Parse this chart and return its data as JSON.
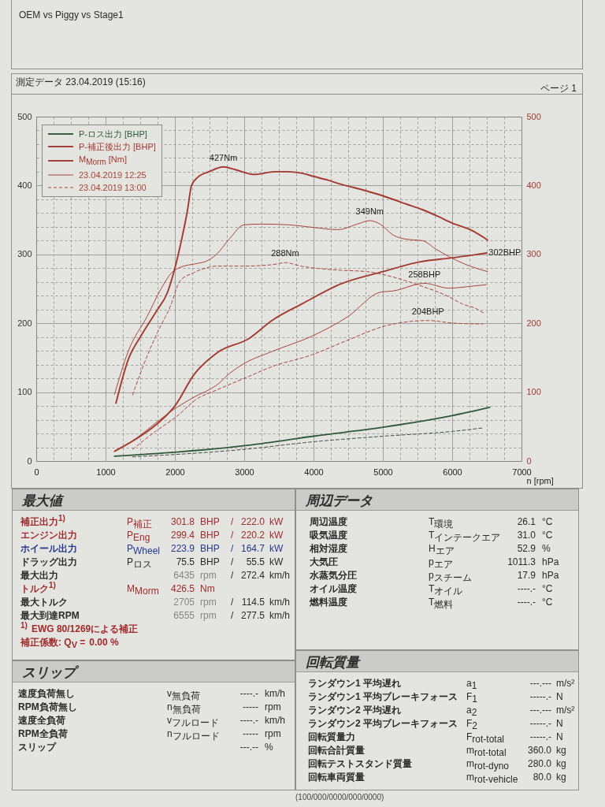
{
  "chart_data": {
    "type": "line",
    "title": "OEM vs Piggy vs Stage1",
    "subtitle": "測定データ 23.04.2019 (15:16)",
    "xlabel": "n [rpm]",
    "xlim": [
      0,
      7000
    ],
    "ylim": [
      0,
      500
    ],
    "y2lim": [
      0,
      500
    ],
    "xticks": [
      0,
      {
        "value": 250,
        "label": null
      },
      {
        "value": 500,
        "label": null
      },
      {
        "value": 750,
        "label": null
      },
      1000,
      {
        "value": 1250,
        "label": null
      },
      {
        "value": 1500,
        "label": null
      },
      {
        "value": 1750,
        "label": null
      },
      2000,
      {
        "value": 2250,
        "label": null
      },
      {
        "value": 2500,
        "label": null
      },
      {
        "value": 2750,
        "label": null
      },
      3000,
      {
        "value": 3250,
        "label": null
      },
      {
        "value": 3500,
        "label": null
      },
      {
        "value": 3750,
        "label": null
      },
      4000,
      {
        "value": 4250,
        "label": null
      },
      {
        "value": 4500,
        "label": null
      },
      {
        "value": 4750,
        "label": null
      },
      5000,
      {
        "value": 5250,
        "label": null
      },
      {
        "value": 5500,
        "label": null
      },
      {
        "value": 5750,
        "label": null
      },
      6000,
      {
        "value": 6250,
        "label": null
      },
      {
        "value": 6500,
        "label": null
      },
      {
        "value": 6750,
        "label": null
      },
      7000
    ],
    "yticks": [
      0,
      {
        "value": 20,
        "label": null
      },
      {
        "value": 40,
        "label": null
      },
      {
        "value": 60,
        "label": null
      },
      {
        "value": 80,
        "label": null
      },
      100,
      {
        "value": 120,
        "label": null
      },
      {
        "value": 140,
        "label": null
      },
      {
        "value": 160,
        "label": null
      },
      {
        "value": 180,
        "label": null
      },
      200,
      {
        "value": 220,
        "label": null
      },
      {
        "value": 240,
        "label": null
      },
      {
        "value": 260,
        "label": null
      },
      {
        "value": 280,
        "label": null
      },
      300,
      {
        "value": 320,
        "label": null
      },
      {
        "value": 340,
        "label": null
      },
      {
        "value": 360,
        "label": null
      },
      {
        "value": 380,
        "label": null
      },
      400,
      {
        "value": 420,
        "label": null
      },
      {
        "value": 440,
        "label": null
      },
      {
        "value": 460,
        "label": null
      },
      {
        "value": 480,
        "label": null
      },
      500
    ],
    "y2ticks": [
      0,
      100,
      200,
      300,
      400,
      500
    ],
    "grid": true,
    "legend": "top left",
    "series": [
      {
        "name": "P-ロス出力 [BHP]",
        "color": "#2f5a3c",
        "x": [
          1130,
          2030,
          3070,
          4000,
          5000,
          6000,
          6540
        ],
        "values": [
          7,
          13,
          23,
          36,
          49,
          66,
          78
        ]
      },
      {
        "name": "P-補正後出力 [BHP]",
        "color": "#a33a2f",
        "x": [
          1130,
          1440,
          1720,
          2000,
          2280,
          2620,
          3070,
          3400,
          3850,
          4390,
          5000,
          5530,
          6000,
          6300,
          6500
        ],
        "values": [
          14,
          32,
          52,
          80,
          126,
          158,
          178,
          204,
          229,
          257,
          275,
          289,
          295,
          299,
          302
        ]
      },
      {
        "name": "M$_{Morm}$ [Nm]",
        "axis": "y2",
        "color": "#a33a2f",
        "x": [
          1150,
          1330,
          1500,
          1610,
          1750,
          1890,
          2000,
          2100,
          2180,
          2240,
          2330,
          2490,
          2700,
          2870,
          3150,
          3440,
          3630,
          3820,
          4010,
          4200,
          4390,
          4580,
          4800,
          5000,
          5340,
          5570,
          5800,
          5990,
          6300,
          6510
        ],
        "values": [
          84,
          148,
          180,
          198,
          220,
          244,
          280,
          323,
          363,
          400,
          412,
          420,
          427,
          423,
          416,
          420,
          420,
          418,
          413,
          408,
          402,
          397,
          391,
          385,
          373,
          365,
          355,
          346,
          334,
          321
        ]
      },
      {
        "name": "23.04.2019 12:25",
        "axis": "y2",
        "line_style": "solid",
        "color": "#a8453a",
        "x": [
          1130,
          1330,
          1600,
          1800,
          1950,
          2070,
          2330,
          2450,
          2600,
          2790,
          3000,
          3250,
          3630,
          4010,
          4350,
          4660,
          4810,
          4960,
          5150,
          5340,
          5570,
          5760,
          5950,
          6180,
          6510
        ],
        "values": [
          97,
          160,
          210,
          250,
          273,
          281,
          287,
          290,
          300,
          323,
          343,
          344,
          343,
          339,
          336,
          345,
          349,
          344,
          328,
          322,
          320,
          308,
          297,
          286,
          275
        ]
      },
      {
        "name": "23.04.2019 13:00",
        "axis": "y2",
        "line_style": "dashed",
        "color": "#a8453a",
        "x": [
          1390,
          1550,
          1750,
          1940,
          2070,
          2260,
          2410,
          2600,
          2980,
          3400,
          3590,
          3820,
          4390,
          4770,
          5150,
          5530,
          5920,
          6150,
          6370,
          6450
        ],
        "values": [
          96,
          140,
          187,
          226,
          261,
          273,
          279,
          283,
          283,
          285,
          288,
          283,
          277,
          275,
          267,
          255,
          240,
          228,
          220,
          215
        ]
      },
      {
        "line_style": "solid",
        "color": "#a8453a",
        "x": [
          1130,
          1440,
          1720,
          2000,
          2300,
          2600,
          2800,
          2955,
          3400,
          3970,
          4500,
          4960,
          5150,
          5600,
          5950,
          6300,
          6490
        ],
        "values": [
          15,
          33,
          55,
          76,
          94,
          110,
          128,
          139,
          159,
          181,
          210,
          245,
          247,
          258,
          251,
          254,
          256
        ]
      },
      {
        "line_style": "dashed",
        "color": "#a8453a",
        "x": [
          1390,
          1720,
          2030,
          2300,
          2600,
          3070,
          3400,
          3970,
          4530,
          5030,
          5650,
          6050,
          6440
        ],
        "values": [
          17,
          43,
          65,
          89,
          103,
          123,
          137,
          154,
          177,
          196,
          204,
          200,
          199
        ]
      },
      {
        "line_style": "dashed",
        "color": "#3d4a42",
        "x": [
          1390,
          3000,
          4000,
          5000,
          6000,
          6435
        ],
        "values": [
          6,
          17,
          28,
          36,
          43,
          48
        ]
      }
    ],
    "annotations": [
      "ページ 1",
      {
        "text": "427Nm",
        "x": 2700,
        "y": 427
      },
      {
        "text": "349Nm",
        "x": 4810,
        "y": 349
      },
      {
        "text": "288Nm",
        "x": 3590,
        "y": 288
      },
      {
        "text": "302BHP",
        "x": 6500,
        "y": 302
      },
      {
        "text": "258BHP",
        "x": 5600,
        "y": 258
      },
      {
        "text": "204BHP",
        "x": 5650,
        "y": 204
      },
      "最大値",
      "補正出力$^{1)}$\tP$_{補正}$\t301.8\tBHP\t/\t222.0\tkW",
      "エンジン出力\tP$_{Eng}$\t299.4\tBHP\t/\t220.2\tkW",
      "ホイール出力\tP$_{Wheel}$\t223.9\tBHP\t/\t164.7\tkW",
      "ドラッグ出力\tP$_{ロス}$\t75.5\tBHP\t/\t55.5\tkW",
      "最大出力\t\t6435\trpm\t/\t272.4\tkm/h",
      "トルク$^{1)}$\tM$_{Morm}$\t426.5\tNm",
      "最大トルク\t\t2705\trpm\t/\t114.5\tkm/h",
      "最大到達RPM\t\t6555\trpm\t/\t277.5\tkm/h",
      "$^{1)}$\tEWG 80/1269による補正",
      "補正係数: Q$_{V}$ =\t0.00 %",
      "周辺データ",
      "周辺温度\tT$_{環境}$\t26.1\t°C",
      "吸気温度\tT$_{インテークエア}$\t31.0\t°C",
      "相対湿度\tH$_{エア}$\t52.9\t%",
      "大気圧\tp$_{エア}$\t1011.3\thPa",
      "水蒸気分圧\tp$_{スチーム}$\t17.9\thPa",
      "オイル温度\tT$_{オイル}$\t----.-\t°C",
      "燃料温度\tT$_{燃料}$\t----.-\t°C",
      "スリップ",
      "速度負荷無し\tv$_{無負荷}$\t----.-\tkm/h",
      "RPM負荷無し\tn$_{無負荷}$\t-----\trpm",
      "速度全負荷\tv$_{フルロード}$\t----.-\tkm/h",
      "RPM全負荷\tn$_{フルロード}$\t-----\trpm",
      "スリップ\t\t---.--\t%",
      "回転質量",
      "ランダウン1 平均遅れ\ta$_{1}$\t---.---\tm/s²",
      "ランダウン1 平均ブレーキフォース\tF$_{1}$\t-----.-\tN",
      "ランダウン2 平均遅れ\ta$_{2}$\t---.---\tm/s²",
      "ランダウン2 平均ブレーキフォース\tF$_{2}$\t-----.-\tN",
      "回転質量力\tF$_{rot-total}$\t-----.-\tN",
      "回転合計質量\tm$_{rot-total}$\t360.0\tkg",
      "回転テストスタンド質量\tm$_{rot-dyno}$\t280.0\tkg",
      "回転車両質量\tm$_{rot-vehicle}$\t80.0\tkg",
      "(100/000/0000/000/0000)"
    ]
  }
}
